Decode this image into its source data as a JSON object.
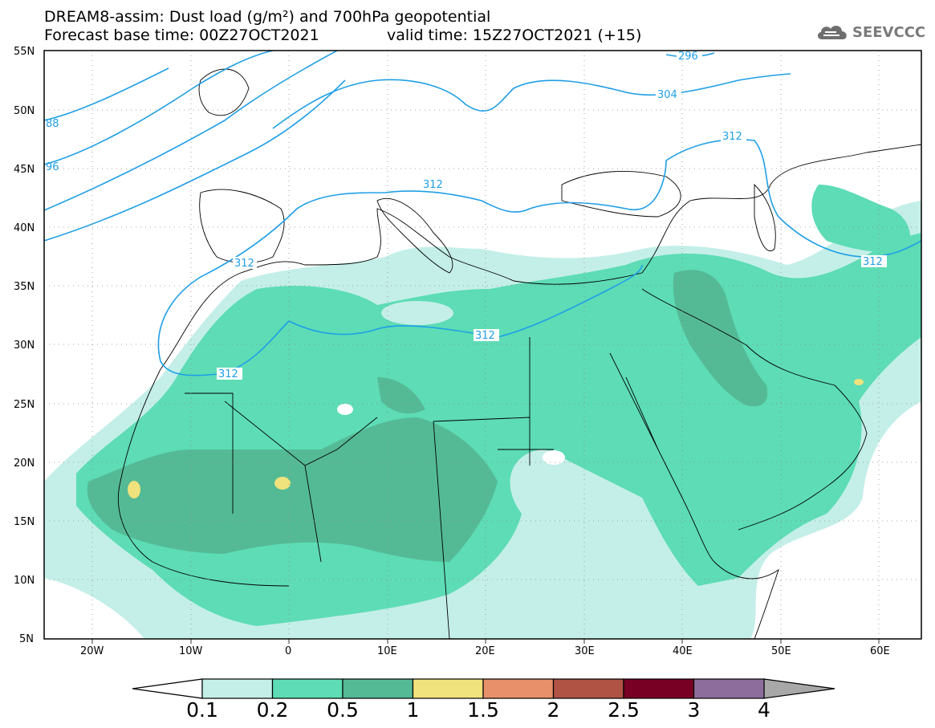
{
  "header": {
    "title_line1": "DREAM8-assim: Dust load (g/m²) and 700hPa geopotential",
    "forecast_base": "Forecast base time: 00Z27OCT2021",
    "valid_time": "valid time: 15Z27OCT2021 (+15)"
  },
  "logo": {
    "text": "SEEVCCC",
    "icon": "cloud-logo-icon"
  },
  "map": {
    "lat_labels": [
      "55N",
      "50N",
      "45N",
      "40N",
      "35N",
      "30N",
      "25N",
      "20N",
      "15N",
      "10N",
      "5N"
    ],
    "lon_labels": [
      "20W",
      "10W",
      "0",
      "10E",
      "20E",
      "30E",
      "40E",
      "50E",
      "60E"
    ],
    "contour_labels": [
      "296",
      "304",
      "312",
      "312",
      "312",
      "312",
      "312",
      "312",
      "88",
      "96"
    ],
    "contour_color": "#1f9fe6",
    "land_border_color": "#000000"
  },
  "colorbar": {
    "ticks": [
      "0.1",
      "0.2",
      "0.5",
      "1",
      "1.5",
      "2",
      "2.5",
      "3",
      "4"
    ],
    "colors": [
      "#c4efe8",
      "#5ddcb5",
      "#54ba95",
      "#f0e27c",
      "#e8906a",
      "#b05345",
      "#780025",
      "#8d6d9c",
      "#a8a8a8"
    ],
    "under_color": "#ffffff"
  }
}
